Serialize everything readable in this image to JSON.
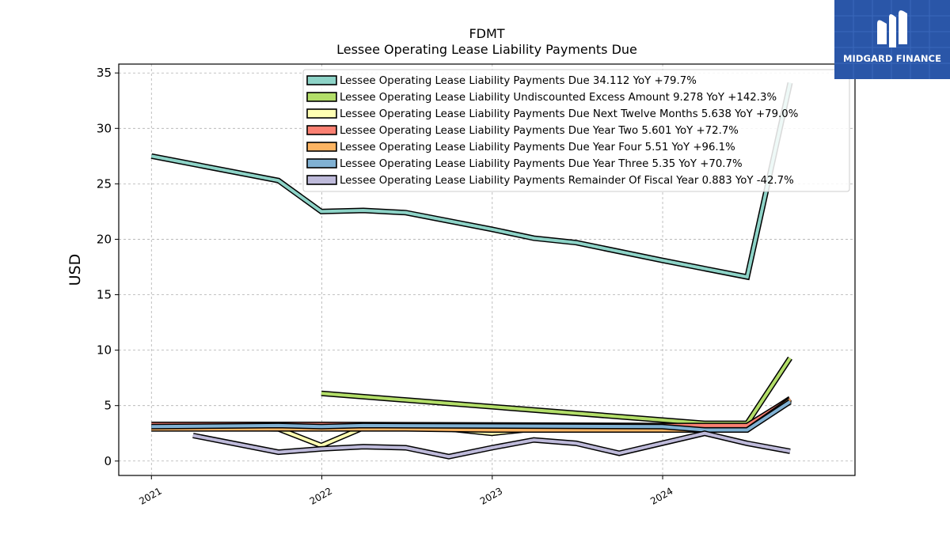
{
  "logo": {
    "text": "MIDGARD FINANCE",
    "icon": "midgard-m-icon",
    "bg_color": "#2a56a8"
  },
  "chart_data": {
    "type": "line",
    "title": "FDMT",
    "subtitle": "Lessee Operating Lease Liability Payments Due",
    "ylabel": "USD",
    "xlabel": "",
    "ylim": [
      -1.3,
      35.8
    ],
    "yticks": [
      0,
      5,
      10,
      15,
      20,
      25,
      30,
      35
    ],
    "xlim": [
      "2020-10-23",
      "2025-02-16"
    ],
    "xticks": [
      {
        "date": "2021-01-01",
        "label": "2021"
      },
      {
        "date": "2022-01-01",
        "label": "2022"
      },
      {
        "date": "2023-01-01",
        "label": "2023"
      },
      {
        "date": "2024-01-01",
        "label": "2024"
      }
    ],
    "grid": true,
    "legend_position": "top-right",
    "series": [
      {
        "name": "Lessee Operating Lease Liability Payments Due",
        "legend": "Lessee Operating Lease Liability Payments Due  34.112 YoY +79.7%",
        "color": "#8dd3c7",
        "points": [
          [
            "2021-01-01",
            27.5
          ],
          [
            "2021-09-30",
            25.3
          ],
          [
            "2021-12-31",
            22.5
          ],
          [
            "2022-03-31",
            22.6
          ],
          [
            "2022-06-30",
            22.4
          ],
          [
            "2022-12-31",
            20.9
          ],
          [
            "2023-03-31",
            20.1
          ],
          [
            "2023-06-30",
            19.7
          ],
          [
            "2023-12-31",
            18.1
          ],
          [
            "2024-06-30",
            16.6
          ],
          [
            "2024-09-30",
            34.112
          ]
        ]
      },
      {
        "name": "Lessee Operating Lease Liability Undiscounted Excess Amount",
        "legend": "Lessee Operating Lease Liability Undiscounted Excess Amount  9.278 YoY +142.3%",
        "color": "#b3de69",
        "points": [
          [
            "2021-12-31",
            6.1
          ],
          [
            "2024-03-31",
            3.4
          ],
          [
            "2024-06-30",
            3.4
          ],
          [
            "2024-09-30",
            9.278
          ]
        ]
      },
      {
        "name": "Lessee Operating Lease Liability Payments Due Next Twelve Months",
        "legend": "Lessee Operating Lease Liability Payments Due Next Twelve Months  5.638 YoY +79.0%",
        "color": "#ffffb3",
        "points": [
          [
            "2021-01-01",
            3.0
          ],
          [
            "2021-09-30",
            2.9
          ],
          [
            "2021-12-31",
            1.4
          ],
          [
            "2022-03-31",
            3.0
          ],
          [
            "2022-09-30",
            2.9
          ],
          [
            "2022-12-31",
            2.5
          ],
          [
            "2023-03-31",
            2.9
          ],
          [
            "2024-06-30",
            3.1
          ],
          [
            "2024-09-30",
            5.638
          ]
        ]
      },
      {
        "name": "Lessee Operating Lease Liability Payments Due Year Two",
        "legend": "Lessee Operating Lease Liability Payments Due Year Two  5.601 YoY +72.7%",
        "color": "#fb8072",
        "points": [
          [
            "2021-01-01",
            3.3
          ],
          [
            "2021-12-31",
            3.3
          ],
          [
            "2023-12-31",
            3.2
          ],
          [
            "2024-06-30",
            3.2
          ],
          [
            "2024-09-30",
            5.601
          ]
        ]
      },
      {
        "name": "Lessee Operating Lease Liability Payments Due Year Four",
        "legend": "Lessee Operating Lease Liability Payments Due Year Four  5.51 YoY +96.1%",
        "color": "#fdb462",
        "points": [
          [
            "2021-01-01",
            2.9
          ],
          [
            "2022-06-30",
            2.9
          ],
          [
            "2022-12-31",
            2.8
          ],
          [
            "2023-12-31",
            2.8
          ],
          [
            "2024-06-30",
            2.8
          ],
          [
            "2024-09-30",
            5.51
          ]
        ]
      },
      {
        "name": "Lessee Operating Lease Liability Payments Due Year Three",
        "legend": "Lessee Operating Lease Liability Payments Due Year Three  5.35 YoY +70.7%",
        "color": "#80b1d3",
        "points": [
          [
            "2021-01-01",
            3.1
          ],
          [
            "2021-09-30",
            3.2
          ],
          [
            "2021-12-31",
            3.1
          ],
          [
            "2022-03-31",
            3.2
          ],
          [
            "2023-12-31",
            3.1
          ],
          [
            "2024-03-31",
            2.8
          ],
          [
            "2024-06-30",
            2.8
          ],
          [
            "2024-09-30",
            5.35
          ]
        ]
      },
      {
        "name": "Lessee Operating Lease Liability Payments Remainder Of Fiscal Year",
        "legend": "Lessee Operating Lease Liability Payments Remainder Of Fiscal Year  0.883 YoY -42.7%",
        "color": "#bebada",
        "points": [
          [
            "2021-03-31",
            2.3
          ],
          [
            "2021-09-30",
            0.8
          ],
          [
            "2021-12-31",
            1.1
          ],
          [
            "2022-03-31",
            1.3
          ],
          [
            "2022-06-30",
            1.2
          ],
          [
            "2022-09-30",
            0.4
          ],
          [
            "2022-12-31",
            1.2
          ],
          [
            "2023-03-31",
            1.9
          ],
          [
            "2023-06-30",
            1.6
          ],
          [
            "2023-09-30",
            0.7
          ],
          [
            "2024-03-31",
            2.5
          ],
          [
            "2024-06-30",
            1.6
          ],
          [
            "2024-09-30",
            0.883
          ]
        ]
      }
    ]
  }
}
